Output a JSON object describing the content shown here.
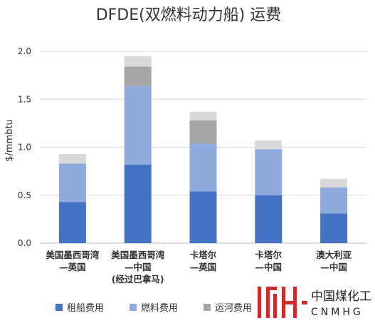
{
  "chart_data": {
    "type": "bar",
    "stacked": true,
    "title": "DFDE(双燃料动力船) 运费",
    "ylabel": "$/mmbtu",
    "xlabel": "",
    "ylim": [
      0,
      2.0
    ],
    "yticks": [
      "0.0",
      "0.5",
      "1.0",
      "1.5",
      "2.0"
    ],
    "categories": [
      [
        "美国墨西哥湾",
        "—英国"
      ],
      [
        "美国墨西哥湾",
        "—中国",
        "(经过巴拿马)"
      ],
      [
        "卡塔尔",
        "—英国"
      ],
      [
        "卡塔尔",
        "—中国"
      ],
      [
        "澳大利亚",
        "—中国"
      ]
    ],
    "series": [
      {
        "name": "租船费用",
        "color": "#4472c4",
        "values": [
          0.43,
          0.82,
          0.54,
          0.5,
          0.31
        ]
      },
      {
        "name": "燃料费用",
        "color": "#8faadc",
        "values": [
          0.4,
          0.82,
          0.5,
          0.48,
          0.27
        ]
      },
      {
        "name": "运河费用",
        "color": "#a5a5a5",
        "values": [
          0.0,
          0.2,
          0.24,
          0.0,
          0.0
        ]
      },
      {
        "name": "",
        "color": "#d9d9d9",
        "values": [
          0.1,
          0.11,
          0.09,
          0.09,
          0.09
        ]
      }
    ],
    "grid": true,
    "legend_position": "bottom-left"
  },
  "watermark": {
    "mark": "MH",
    "chinese": "中国煤化工",
    "english": "CNMHG",
    "color": "#d12a2a"
  }
}
